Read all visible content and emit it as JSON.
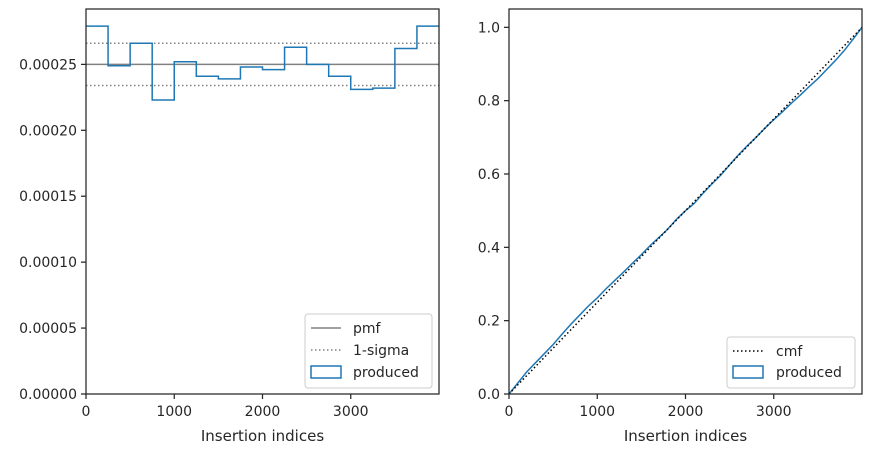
{
  "colors": {
    "produced": "#1f77b4",
    "pmf": "#808080",
    "sigma": "#808080",
    "cmf": "#000000",
    "axes": "#262626"
  },
  "chart_data": [
    {
      "type": "histogram-step",
      "xlabel": "Insertion indices",
      "ylabel": "",
      "xlim": [
        0,
        4000
      ],
      "ylim": [
        0,
        0.000292
      ],
      "xticks": [
        0,
        1000,
        2000,
        3000
      ],
      "xtick_labels": [
        "0",
        "1000",
        "2000",
        "3000"
      ],
      "yticks": [
        0,
        5e-05,
        0.0001,
        0.00015,
        0.0002,
        0.00025
      ],
      "ytick_labels": [
        "0.00000",
        "0.00005",
        "0.00010",
        "0.00015",
        "0.00020",
        "0.00025"
      ],
      "bin_edges": [
        0,
        250,
        500,
        750,
        1000,
        1250,
        1500,
        1750,
        2000,
        2250,
        2500,
        2750,
        3000,
        3250,
        3500,
        3750,
        4000
      ],
      "produced": [
        0.000279,
        0.000249,
        0.000266,
        0.000223,
        0.000252,
        0.000241,
        0.000239,
        0.000248,
        0.000246,
        0.000263,
        0.00025,
        0.000241,
        0.000231,
        0.000232,
        0.000262,
        0.000279
      ],
      "pmf": 0.00025,
      "sigma_upper": 0.000266,
      "sigma_lower": 0.000234,
      "legend": [
        "pmf",
        "1-sigma",
        "produced"
      ],
      "legend_position": "lower-right",
      "grid": false
    },
    {
      "type": "line",
      "xlabel": "Insertion indices",
      "ylabel": "",
      "xlim": [
        0,
        4000
      ],
      "ylim": [
        0,
        1.05
      ],
      "xticks": [
        0,
        1000,
        2000,
        3000
      ],
      "xtick_labels": [
        "0",
        "1000",
        "2000",
        "3000"
      ],
      "yticks": [
        0,
        0.2,
        0.4,
        0.6,
        0.8,
        1.0
      ],
      "ytick_labels": [
        "0.0",
        "0.2",
        "0.4",
        "0.6",
        "0.8",
        "1.0"
      ],
      "cmf": {
        "x": [
          0,
          4000
        ],
        "y": [
          0,
          1.0
        ]
      },
      "produced": {
        "x": [
          0,
          100,
          200,
          300,
          400,
          500,
          600,
          700,
          800,
          900,
          1000,
          1100,
          1200,
          1300,
          1400,
          1500,
          1600,
          1700,
          1800,
          1900,
          2000,
          2100,
          2200,
          2300,
          2400,
          2500,
          2600,
          2700,
          2800,
          2900,
          3000,
          3100,
          3200,
          3300,
          3400,
          3500,
          3600,
          3700,
          3800,
          3900,
          4000
        ],
        "y": [
          0,
          0.03,
          0.06,
          0.085,
          0.11,
          0.135,
          0.163,
          0.19,
          0.215,
          0.24,
          0.262,
          0.287,
          0.31,
          0.333,
          0.357,
          0.38,
          0.405,
          0.427,
          0.45,
          0.477,
          0.5,
          0.52,
          0.548,
          0.573,
          0.597,
          0.625,
          0.652,
          0.677,
          0.7,
          0.725,
          0.748,
          0.77,
          0.793,
          0.815,
          0.838,
          0.86,
          0.885,
          0.91,
          0.937,
          0.968,
          1.0
        ]
      },
      "legend": [
        "cmf",
        "produced"
      ],
      "legend_position": "lower-right",
      "grid": false
    }
  ]
}
